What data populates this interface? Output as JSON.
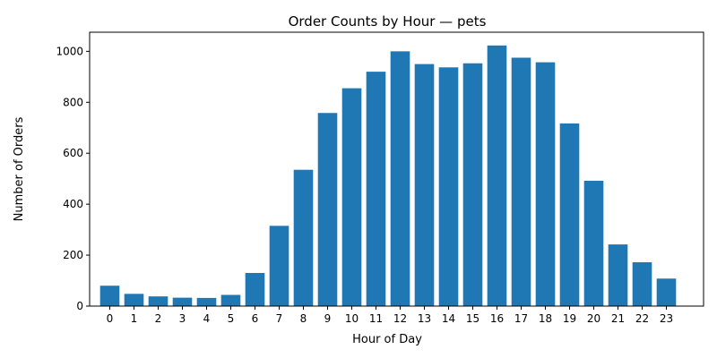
{
  "chart_data": {
    "type": "bar",
    "title": "Order Counts by Hour — pets",
    "xlabel": "Hour of Day",
    "ylabel": "Number of Orders",
    "categories": [
      "0",
      "1",
      "2",
      "3",
      "4",
      "5",
      "6",
      "7",
      "8",
      "9",
      "10",
      "11",
      "12",
      "13",
      "14",
      "15",
      "16",
      "17",
      "18",
      "19",
      "20",
      "21",
      "22",
      "23"
    ],
    "values": [
      80,
      48,
      38,
      33,
      32,
      44,
      130,
      315,
      535,
      758,
      855,
      920,
      1000,
      950,
      937,
      953,
      1023,
      975,
      957,
      717,
      492,
      242,
      172,
      108
    ],
    "ylim": [
      0,
      1075
    ],
    "yticks": [
      0,
      200,
      400,
      600,
      800,
      1000
    ],
    "bar_color": "#1f77b4",
    "grid": false,
    "legend": "none"
  }
}
